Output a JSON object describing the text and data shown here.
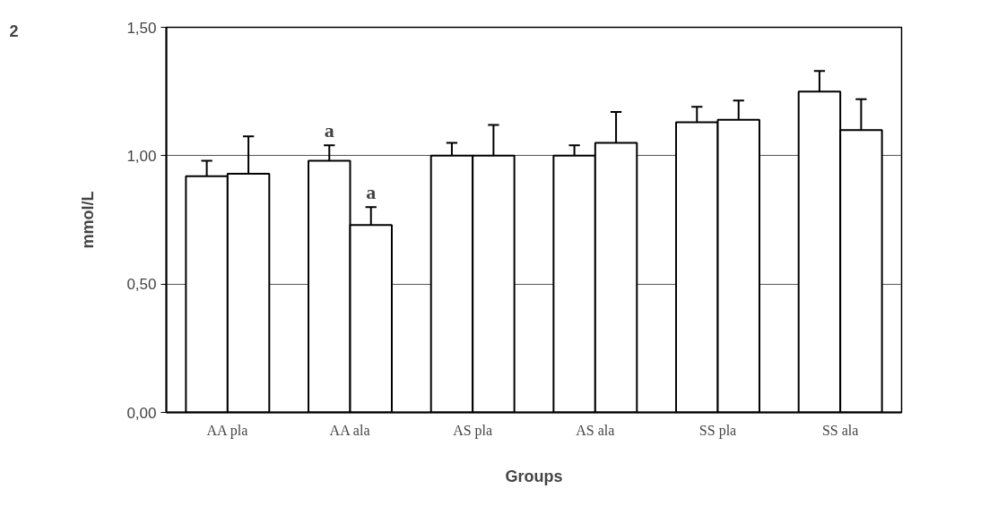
{
  "chart_data": {
    "type": "bar",
    "xlabel": "Groups",
    "ylabel": "mmol/L",
    "categories": [
      "AA pla",
      "AA ala",
      "AS pla",
      "AS ala",
      "SS pla",
      "SS ala"
    ],
    "series": [
      {
        "color": "#ffffff",
        "values": [
          0.92,
          0.98,
          1.0,
          1.0,
          1.13,
          1.25
        ],
        "errors": [
          0.06,
          0.06,
          0.05,
          0.04,
          0.06,
          0.08
        ]
      },
      {
        "color": "#ffffff",
        "values": [
          0.93,
          0.73,
          1.0,
          1.05,
          1.14,
          1.1
        ],
        "errors": [
          0.145,
          0.07,
          0.12,
          0.12,
          0.075,
          0.12
        ]
      }
    ],
    "ylim": [
      0,
      1.5
    ],
    "yticks": [
      {
        "value": 0,
        "label": "0,00"
      },
      {
        "value": 0.5,
        "label": "0,50"
      },
      {
        "value": 1.0,
        "label": "1,00"
      },
      {
        "value": 1.5,
        "label": "1,50"
      }
    ],
    "grid": "y",
    "annotations": [
      "2",
      {
        "text": "a",
        "x": "AA ala",
        "y": 0.98
      },
      {
        "text": "a",
        "x": "AA ala",
        "y": 0.73
      }
    ]
  }
}
